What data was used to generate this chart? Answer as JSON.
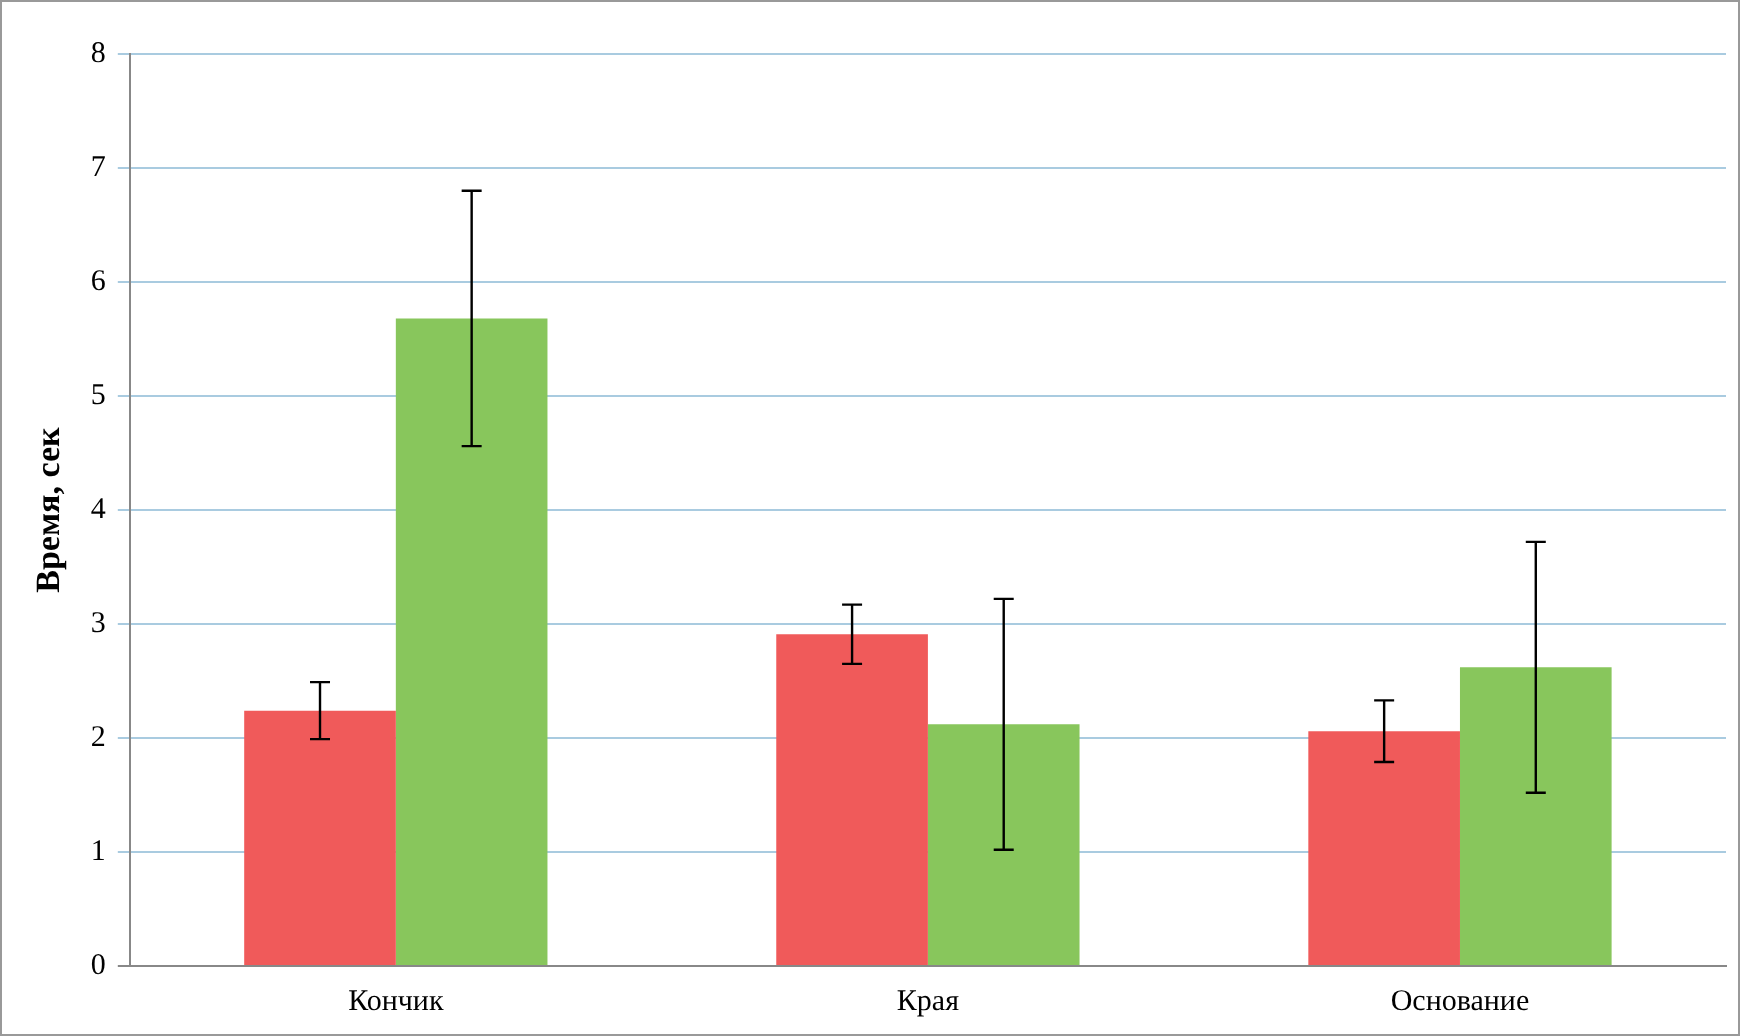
{
  "chart_data": {
    "type": "bar",
    "ylabel": "Время, сек",
    "categories": [
      "Кончик",
      "Края",
      "Основание"
    ],
    "series": [
      {
        "color": "#f05a5a",
        "values": [
          2.24,
          2.91,
          2.06
        ],
        "errors": [
          0.25,
          0.26,
          0.27
        ]
      },
      {
        "color": "#88c65c",
        "values": [
          5.68,
          2.12,
          2.62
        ],
        "errors": [
          1.12,
          1.1,
          1.1
        ]
      }
    ],
    "ylim": [
      0,
      8
    ],
    "yticks": [
      0,
      1,
      2,
      3,
      4,
      5,
      6,
      7,
      8
    ],
    "grid": "y",
    "legend": false
  }
}
